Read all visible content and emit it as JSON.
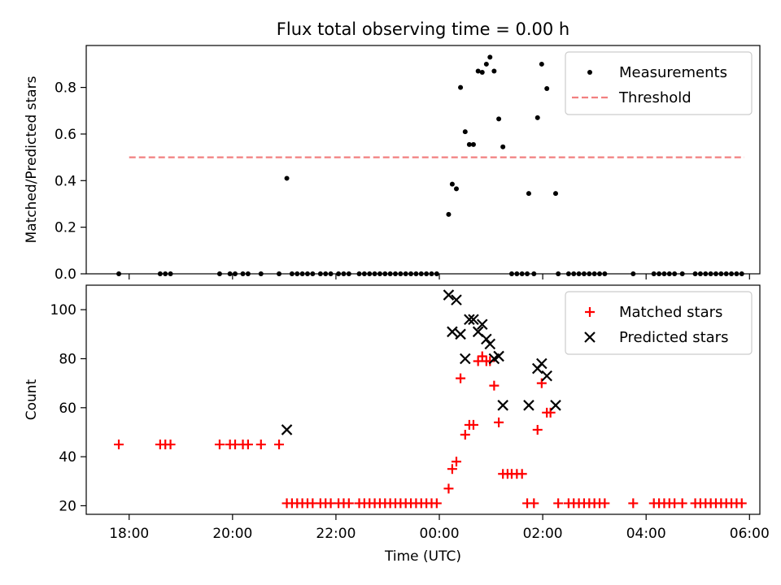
{
  "title": "Flux total observing time = 0.00 h",
  "chart_data": [
    {
      "type": "scatter",
      "ylabel": "Matched/Predicted stars",
      "xlabel": "",
      "xlim_hours": [
        -6.83,
        6.2
      ],
      "ylim": [
        0,
        0.98
      ],
      "yticks": [
        0.0,
        0.2,
        0.4,
        0.6,
        0.8
      ],
      "ytick_labels": [
        "0.0",
        "0.2",
        "0.4",
        "0.6",
        "0.8"
      ],
      "legend": {
        "placement": "top-right",
        "entries": [
          {
            "label": "Measurements",
            "marker": "dot",
            "color": "#000000"
          },
          {
            "label": "Threshold",
            "marker": "dashed-line",
            "color": "#f28080"
          }
        ]
      },
      "threshold": {
        "value": 0.5,
        "x_start_hours": -6.0,
        "x_end_hours": 5.9,
        "color": "#f28080"
      },
      "series": [
        {
          "marker": "dot",
          "color": "#000000",
          "points": [
            [
              -6.2,
              0
            ],
            [
              -5.4,
              0
            ],
            [
              -5.3,
              0
            ],
            [
              -5.2,
              0
            ],
            [
              -4.25,
              0
            ],
            [
              -4.05,
              0
            ],
            [
              -3.95,
              0
            ],
            [
              -3.8,
              0
            ],
            [
              -3.7,
              0
            ],
            [
              -3.45,
              0
            ],
            [
              -3.1,
              0
            ],
            [
              -2.95,
              0.41
            ],
            [
              -2.85,
              0
            ],
            [
              -2.75,
              0
            ],
            [
              -2.65,
              0
            ],
            [
              -2.55,
              0
            ],
            [
              -2.45,
              0
            ],
            [
              -2.3,
              0
            ],
            [
              -2.2,
              0
            ],
            [
              -2.1,
              0
            ],
            [
              -1.95,
              0
            ],
            [
              -1.85,
              0
            ],
            [
              -1.75,
              0
            ],
            [
              -1.55,
              0
            ],
            [
              -1.45,
              0
            ],
            [
              -1.35,
              0
            ],
            [
              -1.25,
              0
            ],
            [
              -1.15,
              0
            ],
            [
              -1.05,
              0
            ],
            [
              -0.95,
              0
            ],
            [
              -0.85,
              0
            ],
            [
              -0.75,
              0
            ],
            [
              -0.65,
              0
            ],
            [
              -0.55,
              0
            ],
            [
              -0.45,
              0
            ],
            [
              -0.35,
              0
            ],
            [
              -0.25,
              0
            ],
            [
              -0.15,
              0
            ],
            [
              -0.05,
              0
            ],
            [
              0.18,
              0.255
            ],
            [
              0.25,
              0.385
            ],
            [
              0.33,
              0.365
            ],
            [
              0.41,
              0.8
            ],
            [
              0.5,
              0.61
            ],
            [
              0.58,
              0.555
            ],
            [
              0.66,
              0.555
            ],
            [
              0.75,
              0.87
            ],
            [
              0.83,
              0.865
            ],
            [
              0.91,
              0.9
            ],
            [
              0.98,
              0.93
            ],
            [
              1.06,
              0.87
            ],
            [
              1.15,
              0.665
            ],
            [
              1.23,
              0.545
            ],
            [
              1.4,
              0
            ],
            [
              1.5,
              0
            ],
            [
              1.6,
              0
            ],
            [
              1.7,
              0
            ],
            [
              1.73,
              0.345
            ],
            [
              1.83,
              0
            ],
            [
              1.9,
              0.67
            ],
            [
              1.98,
              0.9
            ],
            [
              2.08,
              0.795
            ],
            [
              2.25,
              0.345
            ],
            [
              2.3,
              0
            ],
            [
              2.5,
              0
            ],
            [
              2.6,
              0
            ],
            [
              2.7,
              0
            ],
            [
              2.8,
              0
            ],
            [
              2.9,
              0
            ],
            [
              3.0,
              0
            ],
            [
              3.1,
              0
            ],
            [
              3.2,
              0
            ],
            [
              3.75,
              0
            ],
            [
              4.15,
              0
            ],
            [
              4.25,
              0
            ],
            [
              4.35,
              0
            ],
            [
              4.45,
              0
            ],
            [
              4.55,
              0
            ],
            [
              4.7,
              0
            ],
            [
              4.95,
              0
            ],
            [
              5.05,
              0
            ],
            [
              5.15,
              0
            ],
            [
              5.25,
              0
            ],
            [
              5.35,
              0
            ],
            [
              5.45,
              0
            ],
            [
              5.55,
              0
            ],
            [
              5.65,
              0
            ],
            [
              5.75,
              0
            ],
            [
              5.85,
              0
            ]
          ]
        }
      ]
    },
    {
      "type": "scatter",
      "ylabel": "Count",
      "xlabel": "Time (UTC)",
      "xlim_hours": [
        -6.83,
        6.2
      ],
      "ylim": [
        16.5,
        110
      ],
      "yticks": [
        20,
        40,
        60,
        80,
        100
      ],
      "ytick_labels": [
        "20",
        "40",
        "60",
        "80",
        "100"
      ],
      "xticks_hours": [
        -6,
        -4,
        -2,
        0,
        2,
        4,
        6
      ],
      "xtick_labels": [
        "18:00",
        "20:00",
        "22:00",
        "00:00",
        "02:00",
        "04:00",
        "06:00"
      ],
      "legend": {
        "placement": "top-right",
        "entries": [
          {
            "label": "Matched stars",
            "marker": "plus",
            "color": "#ff0000"
          },
          {
            "label": "Predicted stars",
            "marker": "x",
            "color": "#000000"
          }
        ]
      },
      "series": [
        {
          "marker": "plus",
          "color": "#ff0000",
          "points": [
            [
              -6.2,
              45
            ],
            [
              -5.4,
              45
            ],
            [
              -5.3,
              45
            ],
            [
              -5.2,
              45
            ],
            [
              -4.25,
              45
            ],
            [
              -4.05,
              45
            ],
            [
              -3.95,
              45
            ],
            [
              -3.8,
              45
            ],
            [
              -3.7,
              45
            ],
            [
              -3.45,
              45
            ],
            [
              -3.1,
              45
            ],
            [
              -2.95,
              21
            ],
            [
              -2.85,
              21
            ],
            [
              -2.75,
              21
            ],
            [
              -2.65,
              21
            ],
            [
              -2.55,
              21
            ],
            [
              -2.45,
              21
            ],
            [
              -2.3,
              21
            ],
            [
              -2.2,
              21
            ],
            [
              -2.1,
              21
            ],
            [
              -1.95,
              21
            ],
            [
              -1.85,
              21
            ],
            [
              -1.75,
              21
            ],
            [
              -1.55,
              21
            ],
            [
              -1.45,
              21
            ],
            [
              -1.35,
              21
            ],
            [
              -1.25,
              21
            ],
            [
              -1.15,
              21
            ],
            [
              -1.05,
              21
            ],
            [
              -0.95,
              21
            ],
            [
              -0.85,
              21
            ],
            [
              -0.75,
              21
            ],
            [
              -0.65,
              21
            ],
            [
              -0.55,
              21
            ],
            [
              -0.45,
              21
            ],
            [
              -0.35,
              21
            ],
            [
              -0.25,
              21
            ],
            [
              -0.15,
              21
            ],
            [
              -0.05,
              21
            ],
            [
              0.18,
              27
            ],
            [
              0.25,
              35
            ],
            [
              0.33,
              38
            ],
            [
              0.41,
              72
            ],
            [
              0.5,
              49
            ],
            [
              0.58,
              53
            ],
            [
              0.66,
              53
            ],
            [
              0.75,
              79
            ],
            [
              0.83,
              81
            ],
            [
              0.91,
              79
            ],
            [
              0.98,
              79
            ],
            [
              1.06,
              69
            ],
            [
              1.15,
              54
            ],
            [
              1.23,
              33
            ],
            [
              1.32,
              33
            ],
            [
              1.4,
              33
            ],
            [
              1.5,
              33
            ],
            [
              1.6,
              33
            ],
            [
              1.7,
              21
            ],
            [
              1.83,
              21
            ],
            [
              1.9,
              51
            ],
            [
              1.98,
              70
            ],
            [
              2.08,
              58
            ],
            [
              2.15,
              58
            ],
            [
              2.3,
              21
            ],
            [
              2.5,
              21
            ],
            [
              2.6,
              21
            ],
            [
              2.7,
              21
            ],
            [
              2.8,
              21
            ],
            [
              2.9,
              21
            ],
            [
              3.0,
              21
            ],
            [
              3.1,
              21
            ],
            [
              3.2,
              21
            ],
            [
              3.75,
              21
            ],
            [
              4.15,
              21
            ],
            [
              4.25,
              21
            ],
            [
              4.35,
              21
            ],
            [
              4.45,
              21
            ],
            [
              4.55,
              21
            ],
            [
              4.7,
              21
            ],
            [
              4.95,
              21
            ],
            [
              5.05,
              21
            ],
            [
              5.15,
              21
            ],
            [
              5.25,
              21
            ],
            [
              5.35,
              21
            ],
            [
              5.45,
              21
            ],
            [
              5.55,
              21
            ],
            [
              5.65,
              21
            ],
            [
              5.75,
              21
            ],
            [
              5.85,
              21
            ]
          ]
        },
        {
          "marker": "x",
          "color": "#000000",
          "points": [
            [
              -2.95,
              51
            ],
            [
              0.18,
              106
            ],
            [
              0.25,
              91
            ],
            [
              0.33,
              104
            ],
            [
              0.41,
              90
            ],
            [
              0.5,
              80
            ],
            [
              0.58,
              96
            ],
            [
              0.66,
              96
            ],
            [
              0.75,
              91
            ],
            [
              0.83,
              94
            ],
            [
              0.91,
              88
            ],
            [
              0.98,
              86
            ],
            [
              1.06,
              80
            ],
            [
              1.15,
              81
            ],
            [
              1.23,
              61
            ],
            [
              1.73,
              61
            ],
            [
              1.9,
              76
            ],
            [
              1.98,
              78
            ],
            [
              2.08,
              73
            ],
            [
              2.25,
              61
            ]
          ]
        }
      ]
    }
  ]
}
